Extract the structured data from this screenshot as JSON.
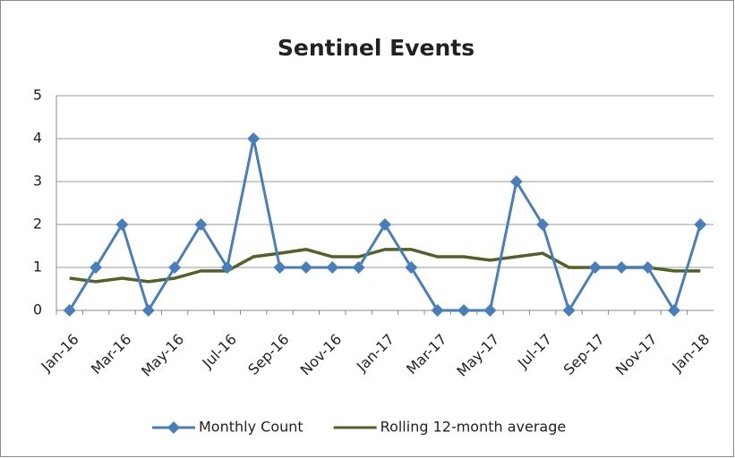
{
  "chart_data": {
    "type": "line",
    "title": "Sentinel Events",
    "categories": [
      "Jan-16",
      null,
      "Mar-16",
      null,
      "May-16",
      null,
      "Jul-16",
      null,
      "Sep-16",
      null,
      "Nov-16",
      null,
      "Jan-17",
      null,
      "Mar-17",
      null,
      "May-17",
      null,
      "Jul-17",
      null,
      "Sep-17",
      null,
      "Nov-17",
      null,
      "Jan-18"
    ],
    "series": [
      {
        "name": "Monthly Count",
        "color": "#4a7ebb",
        "marker": "diamond",
        "values": [
          0,
          1,
          2,
          0,
          1,
          2,
          1,
          4,
          1,
          1,
          1,
          1,
          2,
          1,
          0,
          0,
          0,
          3,
          2,
          0,
          1,
          1,
          1,
          0,
          2
        ]
      },
      {
        "name": "Rolling 12-month average",
        "color": "#4f6228",
        "values": [
          0.75,
          0.67,
          0.75,
          0.67,
          0.75,
          0.92,
          0.92,
          1.25,
          1.33,
          1.42,
          1.25,
          1.25,
          1.42,
          1.42,
          1.25,
          1.25,
          1.17,
          1.25,
          1.33,
          1.0,
          1.0,
          1.0,
          1.0,
          0.92,
          0.92
        ]
      }
    ],
    "ylim": [
      0,
      5
    ],
    "yticks": [
      0,
      1,
      2,
      3,
      4,
      5
    ],
    "grid": true,
    "legend": "bottom"
  }
}
